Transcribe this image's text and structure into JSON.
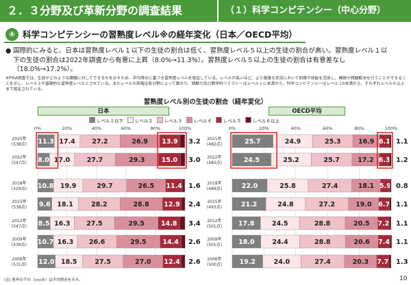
{
  "header": {
    "left_title": "２．３分野及び革新分野の調査結果",
    "right_title": "（１）科学コンピテンシー（中心分野）"
  },
  "section": {
    "number": "④",
    "title": "科学コンピテンシーの習熟度レベル※の経年変化（日本／OECD平均）"
  },
  "bullet": {
    "mark": "●",
    "text": "国際的にみると、日本は習熟度レベル１以下の生徒の割合は低く、習熟度レベル５以上の生徒の割合が高い。習熟度レベル１以下の生徒の割合は2022年調査から有意に上昇（8.0%→11.3%）。習熟度レベル５以上の生徒の割合は有意差なし（18.0%→17.2%）。"
  },
  "note": "※PISA調査では、生徒がどのような課題に対してできるかを示すため、平均得点に基づき習熟度レベルを設定している。レベルが高いほど、より複雑な状況において知識や技能を活用し、推論や問題解決を行うことができることを示し、レベル２が基礎的な習熟度レベルとされている。またレベルの段階は各分野によって異なり、読解力及び数学的リテラシーはレベル１に未満から、科学コンピテンシーはレベル１b未満から、それぞれレベル６以上まで設定されている。",
  "footnote": "(注) 各年の下の（xxx点）は平均得点を示す。",
  "page_number": "10",
  "chart_data": {
    "type": "bar",
    "title": "習熟度レベル別の生徒の割合（経年変化）",
    "legend": [
      "レベル１以下",
      "レベル２",
      "レベル３",
      "レベル４",
      "レベル５",
      "レベル６以上"
    ],
    "colors": [
      "#7f7f7f",
      "#fbe7ea",
      "#efc1c8",
      "#d98f9b",
      "#a6293a",
      "#6b1020"
    ],
    "xlim": [
      0,
      100
    ],
    "xticks": [
      "0%",
      "20%",
      "40%",
      "60%",
      "80%",
      "100%"
    ],
    "panels": [
      {
        "name": "日本",
        "categories": [
          {
            "year": "2025年",
            "score": "(538点)"
          },
          {
            "year": "2022年",
            "score": "(547点)"
          },
          {
            "year": "2018年",
            "score": "(529点)"
          },
          {
            "year": "2015年",
            "score": "(538点)"
          },
          {
            "year": "2012年",
            "score": "(547点)"
          },
          {
            "year": "2009年",
            "score": "(539点)"
          },
          {
            "year": "2006年",
            "score": "(531点)"
          }
        ],
        "values": [
          [
            11.3,
            17.4,
            27.2,
            26.9,
            13.9,
            3.2
          ],
          [
            8.0,
            17.0,
            27.7,
            29.3,
            15.0,
            3.0
          ],
          [
            10.8,
            19.9,
            29.7,
            26.5,
            11.4,
            1.6
          ],
          [
            9.6,
            18.1,
            28.2,
            28.8,
            12.9,
            2.4
          ],
          [
            8.5,
            16.3,
            27.5,
            29.5,
            14.8,
            3.4
          ],
          [
            10.7,
            16.3,
            26.6,
            29.5,
            14.4,
            2.6
          ],
          [
            12.0,
            18.5,
            27.5,
            27.0,
            12.4,
            2.6
          ]
        ]
      },
      {
        "name": "OECD平均",
        "categories": [
          {
            "year": "2025年",
            "score": "(482点)"
          },
          {
            "year": "2022年",
            "score": "(485点)"
          },
          {
            "year": "2018年",
            "score": "(489点)"
          },
          {
            "year": "2015年",
            "score": "(493点)"
          },
          {
            "year": "2012年",
            "score": "(501点)"
          },
          {
            "year": "2009年",
            "score": "(501点)"
          },
          {
            "year": "2006年",
            "score": "(500点)"
          }
        ],
        "values": [
          [
            25.7,
            24.9,
            25.3,
            16.9,
            6.1,
            1.1
          ],
          [
            24.5,
            25.2,
            25.7,
            17.2,
            6.3,
            1.2
          ],
          [
            22.0,
            25.8,
            27.4,
            18.1,
            5.9,
            0.8
          ],
          [
            21.2,
            24.8,
            27.2,
            19.0,
            6.7,
            1.1
          ],
          [
            17.8,
            24.5,
            28.8,
            20.5,
            7.2,
            1.1
          ],
          [
            18.0,
            24.4,
            28.8,
            20.6,
            7.4,
            1.1
          ],
          [
            19.2,
            24.0,
            27.4,
            20.3,
            7.7,
            1.3
          ]
        ]
      }
    ]
  }
}
